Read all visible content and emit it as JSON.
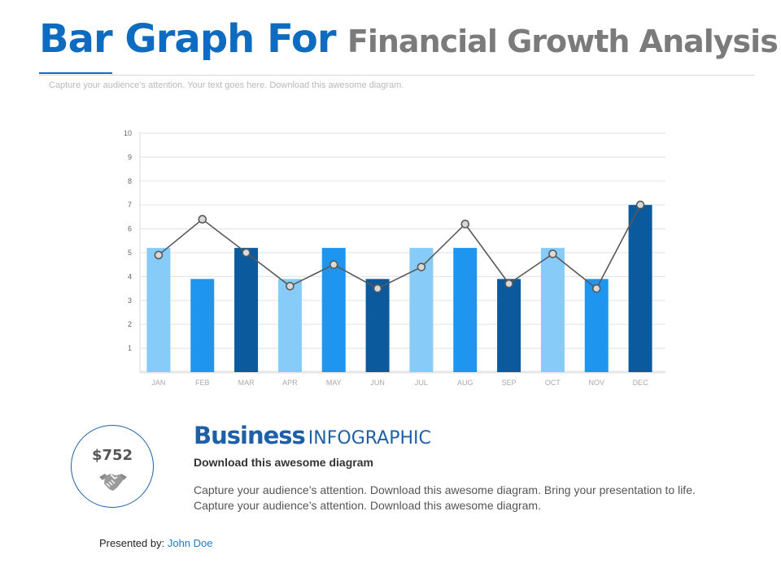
{
  "header": {
    "title_part1": "Bar Graph For",
    "title_part2": "Financial Growth Analysis",
    "subtitle": "Capture your audience’s attention. Your text goes here. Download this awesome diagram."
  },
  "colors": {
    "light": "#87cbf8",
    "mid": "#1e96f0",
    "dark": "#0b5a9e",
    "line": "#595959",
    "marker_fill": "#d9d9d9",
    "grid": "#e6e6e6",
    "accent": "#1f5fa8"
  },
  "chart_data": {
    "type": "bar",
    "categories": [
      "JAN",
      "FEB",
      "MAR",
      "APR",
      "MAY",
      "JUN",
      "JUL",
      "AUG",
      "SEP",
      "OCT",
      "NOV",
      "DEC"
    ],
    "series": [
      {
        "type": "bar",
        "values": [
          5.2,
          3.9,
          5.2,
          3.9,
          5.2,
          3.9,
          5.2,
          5.2,
          3.9,
          5.2,
          3.9,
          7.0
        ],
        "color_keys": [
          "light",
          "mid",
          "dark",
          "light",
          "mid",
          "dark",
          "light",
          "mid",
          "dark",
          "light",
          "mid",
          "dark"
        ]
      },
      {
        "type": "line",
        "values": [
          4.9,
          6.4,
          5.0,
          3.6,
          4.5,
          3.5,
          4.4,
          6.2,
          3.7,
          4.95,
          3.5,
          7.0
        ]
      }
    ],
    "yticks": [
      1,
      2,
      3,
      4,
      5,
      6,
      7,
      8,
      9,
      10
    ],
    "ylim": [
      0,
      10
    ],
    "grid": true,
    "legend": "none",
    "title": "",
    "xlabel": "",
    "ylabel": ""
  },
  "badge": {
    "value": "$752",
    "icon": "handshake-icon"
  },
  "info": {
    "heading_bold": "Business",
    "heading_light": "INFOGRAPHIC",
    "subheading": "Download this awesome diagram",
    "body": "Capture your audience’s attention. Download this awesome diagram. Bring your presentation to life. Capture your audience’s attention. Download this awesome diagram."
  },
  "footer": {
    "presented_label": "Presented by:",
    "presenter_name": "John Doe"
  }
}
